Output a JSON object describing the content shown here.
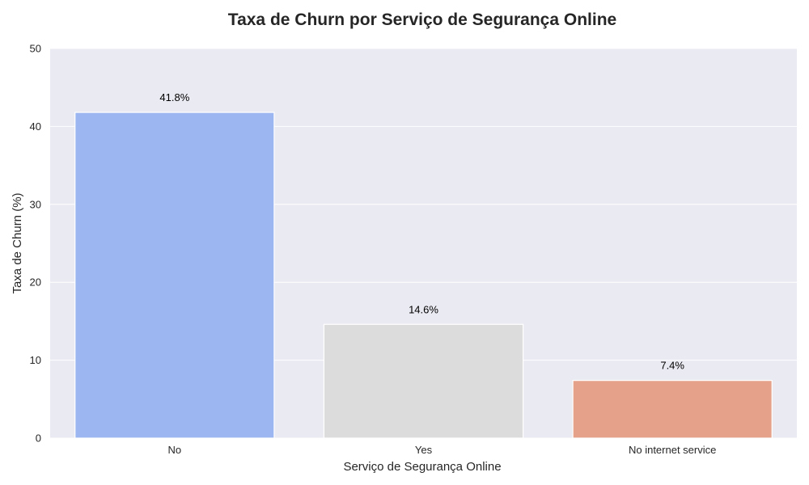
{
  "chart_data": {
    "type": "bar",
    "title": "Taxa de Churn por Serviço de Segurança Online",
    "xlabel": "Serviço de Segurança Online",
    "ylabel": "Taxa de Churn (%)",
    "categories": [
      "No",
      "Yes",
      "No internet service"
    ],
    "values": [
      41.8,
      14.6,
      7.4
    ],
    "data_labels": [
      "41.8%",
      "14.6%",
      "7.4%"
    ],
    "colors": [
      "#9bb6f0",
      "#dcdcdc",
      "#e5a189"
    ],
    "ylim": [
      0,
      50
    ],
    "yticks": [
      0,
      10,
      20,
      30,
      40,
      50
    ],
    "ytick_labels": [
      "0",
      "10",
      "20",
      "30",
      "40",
      "50"
    ],
    "grid": true,
    "background": "#eaeaf2",
    "gridline_color": "#ffffff"
  }
}
